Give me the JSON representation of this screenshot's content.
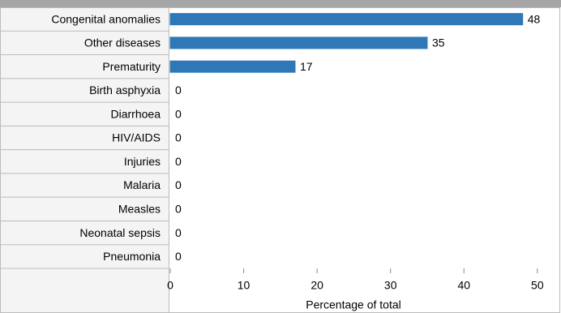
{
  "chart_data": {
    "type": "bar",
    "orientation": "horizontal",
    "categories": [
      "Congenital anomalies",
      "Other diseases",
      "Prematurity",
      "Birth asphyxia",
      "Diarrhoea",
      "HIV/AIDS",
      "Injuries",
      "Malaria",
      "Measles",
      "Neonatal sepsis",
      "Pneumonia"
    ],
    "values": [
      48,
      35,
      17,
      0,
      0,
      0,
      0,
      0,
      0,
      0,
      0
    ],
    "color": "#2e78b7",
    "xlim": [
      0,
      53
    ],
    "xticks": [
      0,
      10,
      20,
      30,
      40,
      50
    ],
    "xlabel": "Percentage of total"
  }
}
